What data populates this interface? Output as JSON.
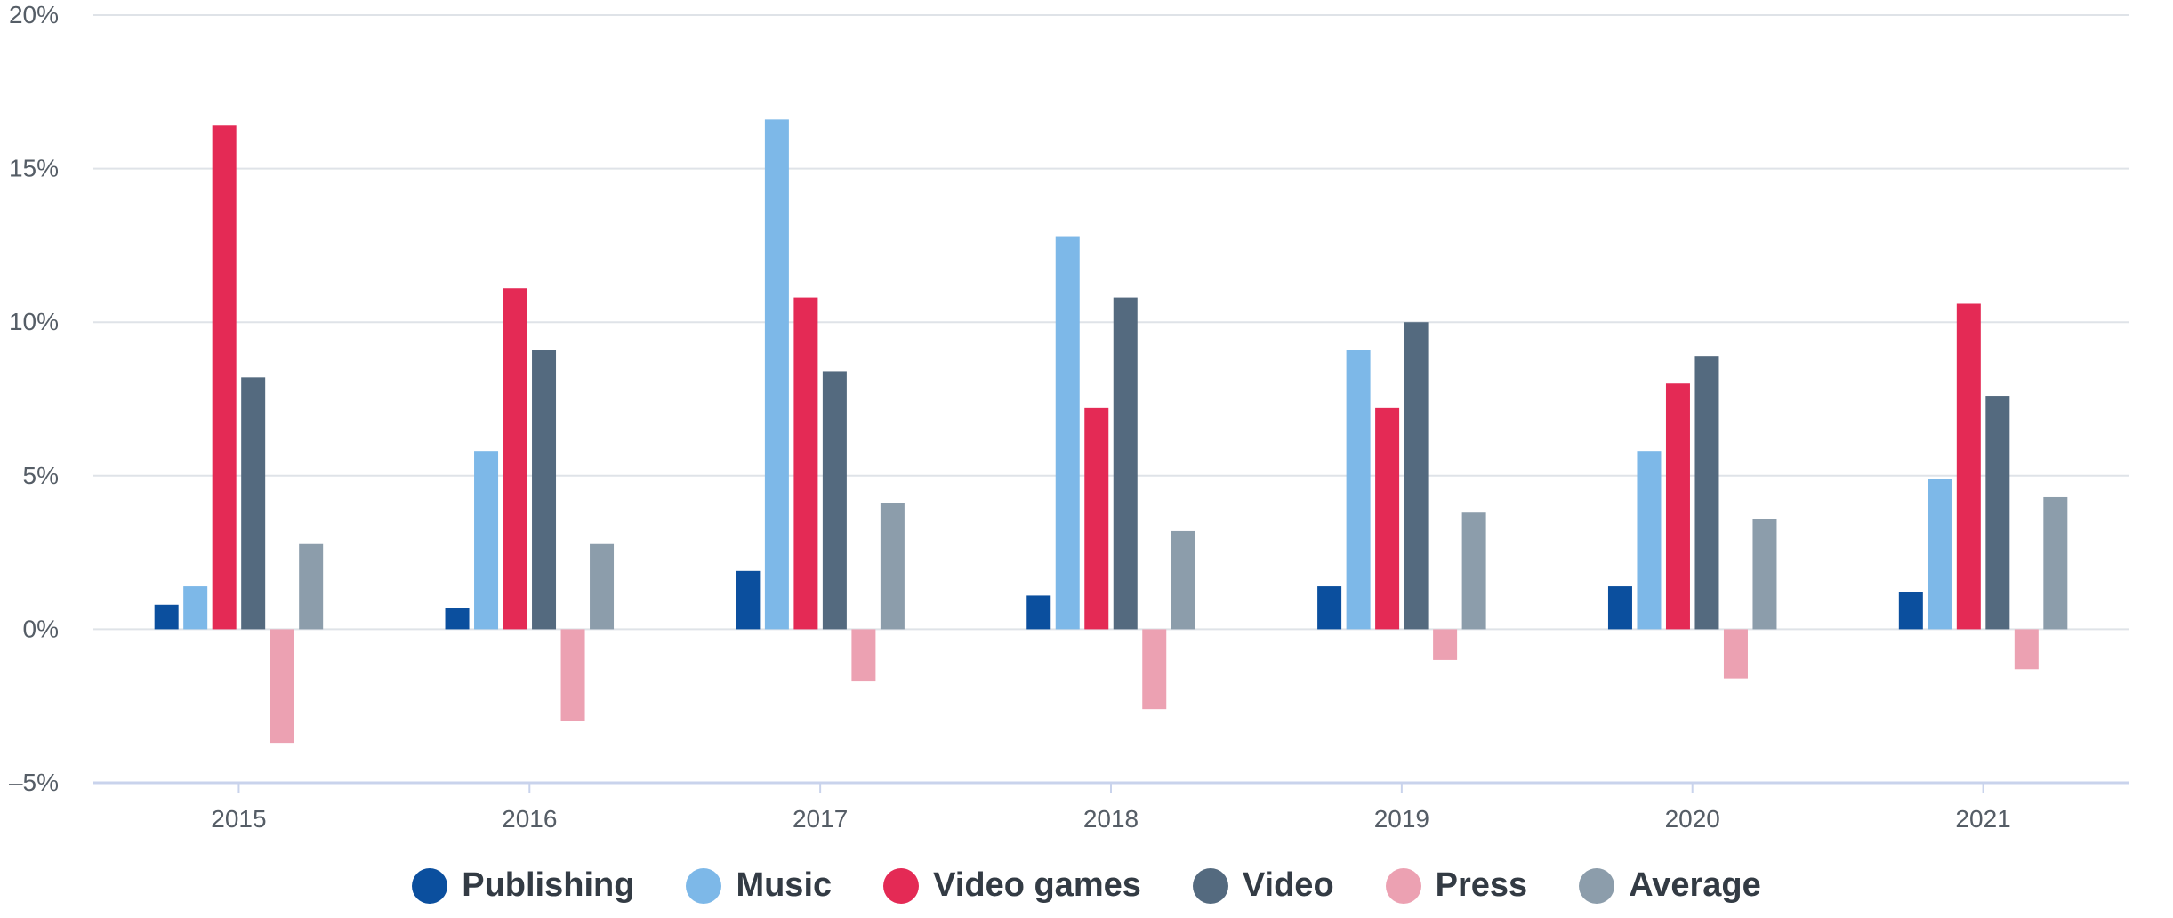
{
  "chart_data": {
    "type": "bar",
    "categories": [
      "2015",
      "2016",
      "2017",
      "2018",
      "2019",
      "2020",
      "2021"
    ],
    "series": [
      {
        "name": "Publishing",
        "color": "#0b4f9e",
        "values": [
          0.8,
          0.7,
          1.9,
          1.1,
          1.4,
          1.4,
          1.2
        ]
      },
      {
        "name": "Music",
        "color": "#7db8e8",
        "values": [
          1.4,
          5.8,
          16.6,
          12.8,
          9.1,
          5.8,
          4.9
        ]
      },
      {
        "name": "Video games",
        "color": "#e42a55",
        "values": [
          16.4,
          11.1,
          10.8,
          7.2,
          7.2,
          8.0,
          10.6
        ]
      },
      {
        "name": "Video",
        "color": "#546a7f",
        "values": [
          8.2,
          9.1,
          8.4,
          10.8,
          10.0,
          8.9,
          7.6
        ]
      },
      {
        "name": "Press",
        "color": "#eca1b2",
        "values": [
          -3.7,
          -3.0,
          -1.7,
          -2.6,
          -1.0,
          -1.6,
          -1.3
        ]
      },
      {
        "name": "Average",
        "color": "#8c9dab",
        "values": [
          2.8,
          2.8,
          4.1,
          3.2,
          3.8,
          3.6,
          4.3
        ]
      }
    ],
    "y_ticks": [
      "20%",
      "15%",
      "10%",
      "5%",
      "0%",
      "–5%"
    ],
    "ylim": [
      -5,
      20
    ],
    "grid": true,
    "legend_position": "bottom-center"
  }
}
